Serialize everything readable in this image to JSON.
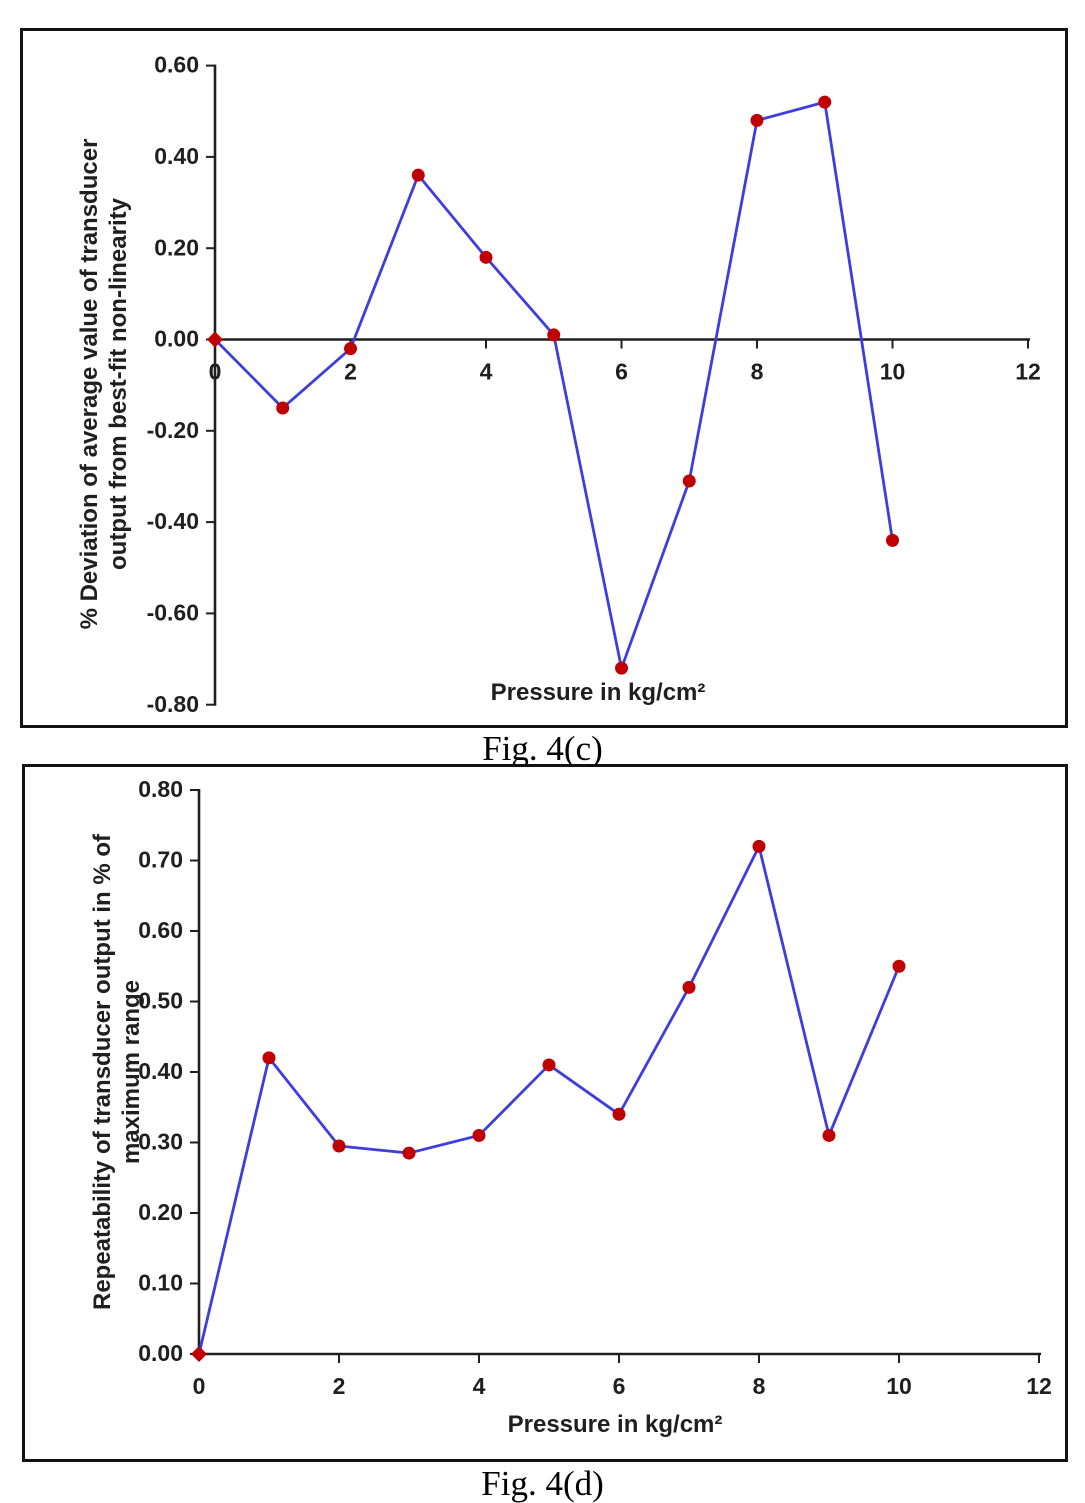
{
  "page": {
    "background": "#ffffff"
  },
  "chart_data": [
    {
      "id": "fig4c",
      "type": "line",
      "caption": "Fig. 4(c)",
      "xlabel": "Pressure in kg/cm²",
      "ylabel_line1": "% Deviation of average value of transducer",
      "ylabel_line2": "output from best-fit non-linearity",
      "x": [
        0,
        1,
        2,
        3,
        4,
        5,
        6,
        7,
        8,
        9,
        10
      ],
      "y": [
        0.0,
        -0.15,
        -0.02,
        0.36,
        0.18,
        0.01,
        -0.72,
        -0.31,
        0.48,
        0.52,
        -0.44
      ],
      "xlim": [
        0,
        12
      ],
      "ylim": [
        -0.8,
        0.6
      ],
      "xtick_labels": [
        "0",
        "2",
        "4",
        "6",
        "8",
        "10",
        "12"
      ],
      "xtick_values": [
        0,
        2,
        4,
        6,
        8,
        10,
        12
      ],
      "ytick_labels": [
        "0.60",
        "0.40",
        "0.20",
        "0.00",
        "-0.20",
        "-0.40",
        "-0.60",
        "-0.80"
      ],
      "ytick_values": [
        0.6,
        0.4,
        0.2,
        0.0,
        -0.2,
        -0.4,
        -0.6,
        -0.8
      ],
      "grid": false,
      "legend": "none",
      "line_color": "#3d3de0",
      "marker_color": "#c00000",
      "axis_color": "#1f1f1f",
      "first_marker_shape": "diamond",
      "marker_shape": "circle"
    },
    {
      "id": "fig4d",
      "type": "line",
      "caption": "Fig. 4(d)",
      "xlabel": "Pressure in kg/cm²",
      "ylabel_line1": "Repeatability of  transducer output in % of",
      "ylabel_line2": "maximum range",
      "x": [
        0,
        1,
        2,
        3,
        4,
        5,
        6,
        7,
        8,
        9,
        10
      ],
      "y": [
        0.0,
        0.42,
        0.295,
        0.285,
        0.31,
        0.41,
        0.34,
        0.52,
        0.72,
        0.31,
        0.55
      ],
      "xlim": [
        0,
        12
      ],
      "ylim": [
        0.0,
        0.8
      ],
      "xtick_labels": [
        "0",
        "2",
        "4",
        "6",
        "8",
        "10",
        "12"
      ],
      "xtick_values": [
        0,
        2,
        4,
        6,
        8,
        10,
        12
      ],
      "ytick_labels": [
        "0.80",
        "0.70",
        "0.60",
        "0.50",
        "0.40",
        "0.30",
        "0.20",
        "0.10",
        "0.00"
      ],
      "ytick_values": [
        0.8,
        0.7,
        0.6,
        0.5,
        0.4,
        0.3,
        0.2,
        0.1,
        0.0
      ],
      "grid": false,
      "legend": "none",
      "line_color": "#3d3de0",
      "marker_color": "#c00000",
      "axis_color": "#1f1f1f",
      "first_marker_shape": "diamond",
      "marker_shape": "circle"
    }
  ]
}
